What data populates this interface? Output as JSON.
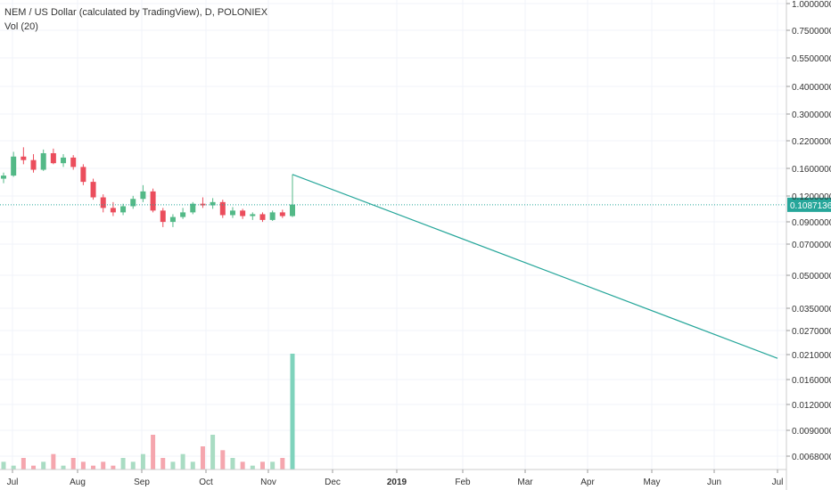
{
  "legend": {
    "symbol_title": "NEM / US Dollar (calculated by TradingView), D, POLONIEX",
    "volume_label": "Vol (20)"
  },
  "chart_data": {
    "type": "candlestick",
    "title": "NEM / US Dollar (calculated by TradingView), D, POLONIEX",
    "y_scale": "log",
    "y_ticks": [
      "1.00000000",
      "0.75000000",
      "0.55000000",
      "0.40000000",
      "0.30000000",
      "0.22000000",
      "0.16000000",
      "0.12000000",
      "0.09000000",
      "0.07000000",
      "0.05000000",
      "0.03500000",
      "0.02700000",
      "0.02100000",
      "0.01600000",
      "0.01200000",
      "0.00900000",
      "0.00680000"
    ],
    "x_ticks": [
      "Jul",
      "Aug",
      "Sep",
      "Oct",
      "Nov",
      "Dec",
      "2019",
      "Feb",
      "Mar",
      "Apr",
      "May",
      "Jun",
      "Jul"
    ],
    "last_price_label": "0.10871365",
    "last_price": 0.10871365,
    "colors": {
      "up": "#53b987",
      "down": "#eb4d5c",
      "line": "#26a69a",
      "grid": "#f0f3fa",
      "axis_text": "#333333",
      "price_label_bg": "#26a69a"
    },
    "price_series": [
      {
        "date": "2018-07",
        "open": 0.145,
        "high": 0.155,
        "low": 0.138,
        "close": 0.15
      },
      {
        "date": "2018-07",
        "open": 0.15,
        "high": 0.195,
        "low": 0.148,
        "close": 0.185
      },
      {
        "date": "2018-07",
        "open": 0.185,
        "high": 0.205,
        "low": 0.17,
        "close": 0.178
      },
      {
        "date": "2018-07",
        "open": 0.178,
        "high": 0.19,
        "low": 0.155,
        "close": 0.16
      },
      {
        "date": "2018-07",
        "open": 0.16,
        "high": 0.2,
        "low": 0.158,
        "close": 0.192
      },
      {
        "date": "2018-07",
        "open": 0.192,
        "high": 0.202,
        "low": 0.17,
        "close": 0.172
      },
      {
        "date": "2018-07",
        "open": 0.172,
        "high": 0.19,
        "low": 0.165,
        "close": 0.183
      },
      {
        "date": "2018-08",
        "open": 0.183,
        "high": 0.188,
        "low": 0.16,
        "close": 0.165
      },
      {
        "date": "2018-08",
        "open": 0.165,
        "high": 0.17,
        "low": 0.135,
        "close": 0.14
      },
      {
        "date": "2018-08",
        "open": 0.14,
        "high": 0.145,
        "low": 0.115,
        "close": 0.118
      },
      {
        "date": "2018-08",
        "open": 0.118,
        "high": 0.122,
        "low": 0.1,
        "close": 0.105
      },
      {
        "date": "2018-08",
        "open": 0.105,
        "high": 0.112,
        "low": 0.096,
        "close": 0.1
      },
      {
        "date": "2018-08",
        "open": 0.1,
        "high": 0.11,
        "low": 0.097,
        "close": 0.107
      },
      {
        "date": "2018-08",
        "open": 0.107,
        "high": 0.12,
        "low": 0.104,
        "close": 0.116
      },
      {
        "date": "2018-08",
        "open": 0.116,
        "high": 0.135,
        "low": 0.112,
        "close": 0.126
      },
      {
        "date": "2018-09",
        "open": 0.126,
        "high": 0.13,
        "low": 0.1,
        "close": 0.102
      },
      {
        "date": "2018-09",
        "open": 0.102,
        "high": 0.105,
        "low": 0.085,
        "close": 0.09
      },
      {
        "date": "2018-09",
        "open": 0.09,
        "high": 0.098,
        "low": 0.085,
        "close": 0.095
      },
      {
        "date": "2018-09",
        "open": 0.095,
        "high": 0.105,
        "low": 0.093,
        "close": 0.1
      },
      {
        "date": "2018-09",
        "open": 0.1,
        "high": 0.112,
        "low": 0.098,
        "close": 0.11
      },
      {
        "date": "2018-09",
        "open": 0.11,
        "high": 0.118,
        "low": 0.105,
        "close": 0.108
      },
      {
        "date": "2018-10",
        "open": 0.108,
        "high": 0.117,
        "low": 0.104,
        "close": 0.112
      },
      {
        "date": "2018-10",
        "open": 0.112,
        "high": 0.115,
        "low": 0.094,
        "close": 0.097
      },
      {
        "date": "2018-10",
        "open": 0.097,
        "high": 0.106,
        "low": 0.094,
        "close": 0.102
      },
      {
        "date": "2018-10",
        "open": 0.102,
        "high": 0.104,
        "low": 0.093,
        "close": 0.096
      },
      {
        "date": "2018-10",
        "open": 0.096,
        "high": 0.1,
        "low": 0.092,
        "close": 0.098
      },
      {
        "date": "2018-11",
        "open": 0.098,
        "high": 0.1,
        "low": 0.09,
        "close": 0.092
      },
      {
        "date": "2018-11",
        "open": 0.092,
        "high": 0.102,
        "low": 0.091,
        "close": 0.1
      },
      {
        "date": "2018-11",
        "open": 0.1,
        "high": 0.103,
        "low": 0.094,
        "close": 0.096
      },
      {
        "date": "2018-11",
        "open": 0.096,
        "high": 0.152,
        "low": 0.095,
        "close": 0.109
      }
    ],
    "trend_line": [
      {
        "date": "2018-11",
        "value": 0.152
      },
      {
        "date": "2019-07",
        "value": 0.02
      }
    ],
    "volume_series": [
      2,
      1,
      3,
      1,
      2,
      4,
      1,
      3,
      2,
      1,
      2,
      1,
      3,
      2,
      4,
      9,
      3,
      2,
      4,
      2,
      6,
      9,
      5,
      3,
      2,
      1,
      2,
      2,
      3,
      30
    ]
  }
}
